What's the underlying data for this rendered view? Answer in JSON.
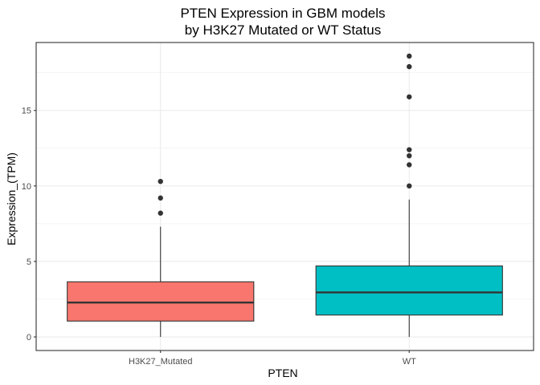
{
  "chart_data": {
    "type": "boxplot",
    "title": "PTEN Expression in GBM models",
    "subtitle": "by H3K27 Mutated or WT Status",
    "xlabel": "PTEN",
    "ylabel": "Expression_(TPM)",
    "categories": [
      "H3K27_Mutated",
      "WT"
    ],
    "y_ticks": [
      0,
      5,
      10,
      15
    ],
    "y_tick_labels": [
      "0",
      "5",
      "10",
      "15"
    ],
    "ylim": [
      -0.9,
      19.5
    ],
    "grid": true,
    "legend": "none",
    "series": [
      {
        "category": "H3K27_Mutated",
        "color": "#F8766D",
        "min": 0.0,
        "q1": 1.05,
        "median": 2.28,
        "q3": 3.65,
        "max": 7.3,
        "outliers": [
          8.2,
          9.2,
          10.3
        ]
      },
      {
        "category": "WT",
        "color": "#00BFC4",
        "min": 0.0,
        "q1": 1.45,
        "median": 2.95,
        "q3": 4.7,
        "max": 9.1,
        "outliers": [
          10.0,
          11.4,
          12.0,
          12.4,
          15.9,
          17.9,
          18.6
        ]
      }
    ]
  }
}
